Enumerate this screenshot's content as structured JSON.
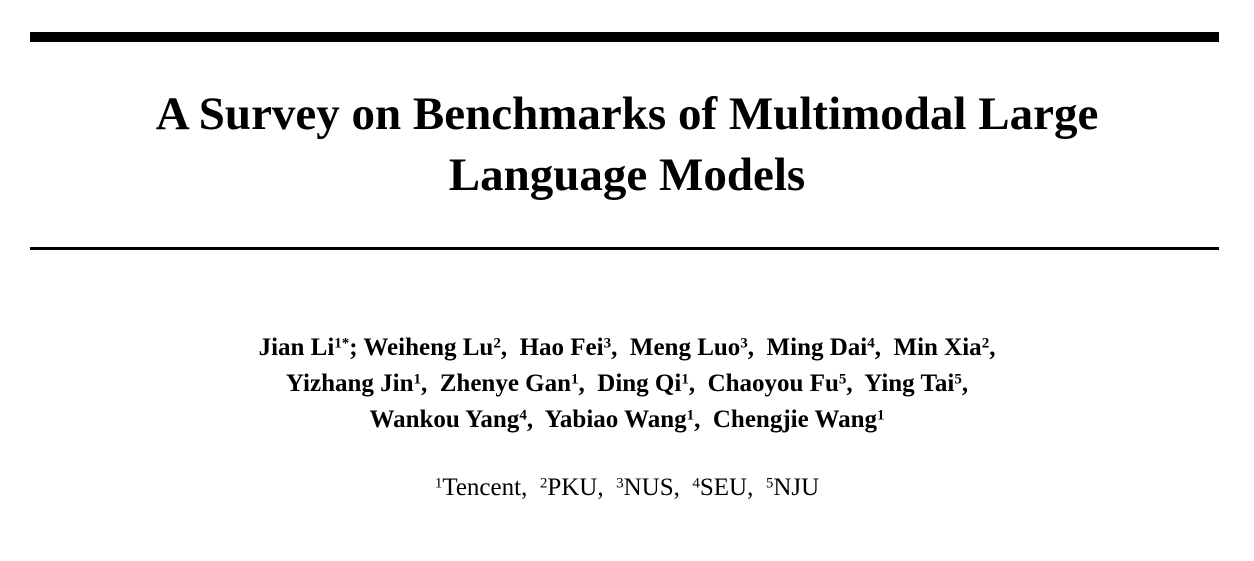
{
  "title": {
    "line1": "A Survey on Benchmarks of Multimodal Large",
    "line2": "Language Models"
  },
  "authors": [
    [
      {
        "name": "Jian Li",
        "sup": "1",
        "mark": "*",
        "sep": "; "
      },
      {
        "name": "Weiheng Lu",
        "sup": "2",
        "sep": ",  "
      },
      {
        "name": "Hao Fei",
        "sup": "3",
        "sep": ",  "
      },
      {
        "name": "Meng Luo",
        "sup": "3",
        "sep": ",  "
      },
      {
        "name": "Ming Dai",
        "sup": "4",
        "sep": ",  "
      },
      {
        "name": "Min Xia",
        "sup": "2",
        "sep": ","
      }
    ],
    [
      {
        "name": "Yizhang Jin",
        "sup": "1",
        "sep": ",  "
      },
      {
        "name": "Zhenye Gan",
        "sup": "1",
        "sep": ",  "
      },
      {
        "name": "Ding Qi",
        "sup": "1",
        "sep": ",  "
      },
      {
        "name": "Chaoyou Fu",
        "sup": "5",
        "sep": ",  "
      },
      {
        "name": "Ying Tai",
        "sup": "5",
        "sep": ","
      }
    ],
    [
      {
        "name": "Wankou Yang",
        "sup": "4",
        "sep": ",  "
      },
      {
        "name": "Yabiao Wang",
        "sup": "1",
        "sep": ",  "
      },
      {
        "name": "Chengjie Wang",
        "sup": "1",
        "sep": ""
      }
    ]
  ],
  "affiliations": [
    {
      "sup": "1",
      "name": "Tencent",
      "sep": ",  "
    },
    {
      "sup": "2",
      "name": "PKU",
      "sep": ",  "
    },
    {
      "sup": "3",
      "name": "NUS",
      "sep": ",  "
    },
    {
      "sup": "4",
      "name": "SEU",
      "sep": ",  "
    },
    {
      "sup": "5",
      "name": "NJU",
      "sep": ""
    }
  ]
}
